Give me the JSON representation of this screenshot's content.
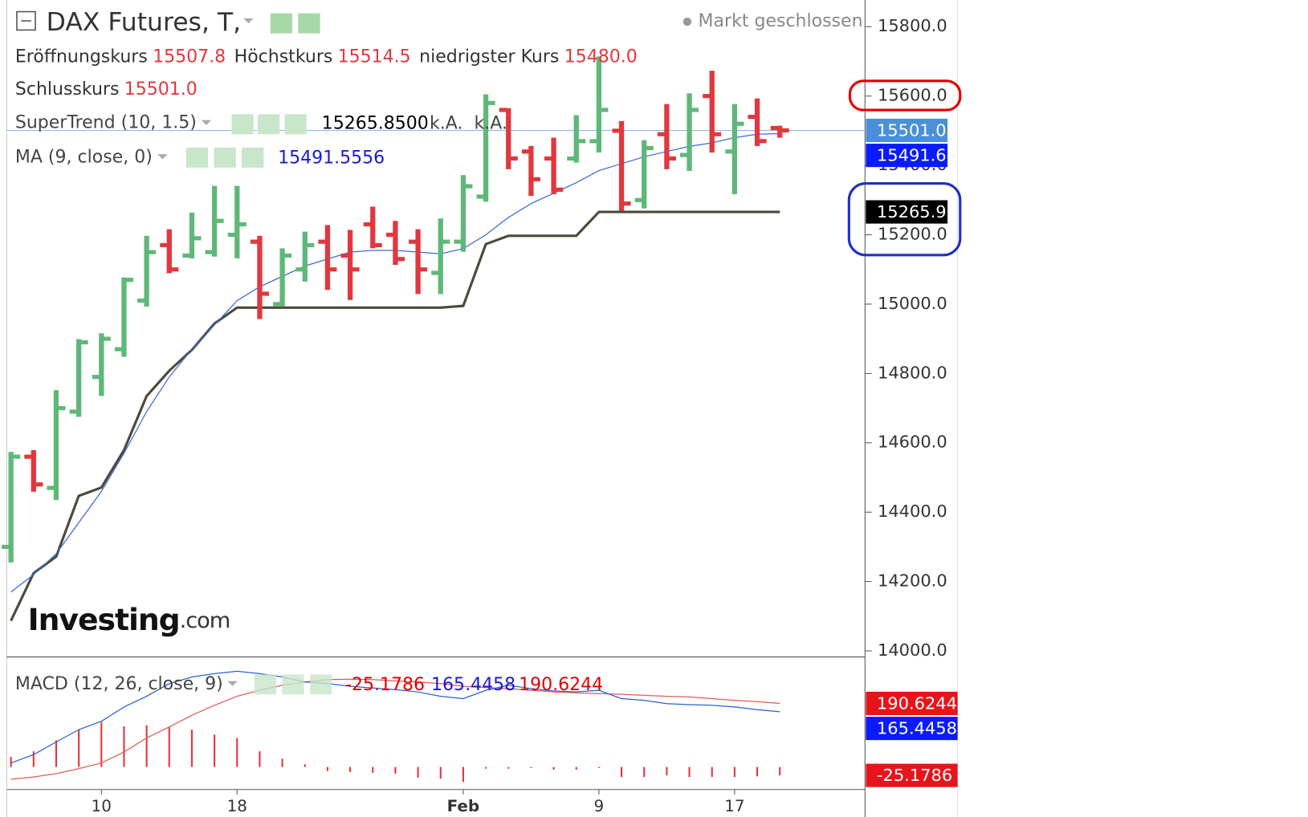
{
  "chart_data": {
    "type": "ohlc",
    "title": "DAX Futures, T,",
    "status": "Markt geschlossen",
    "watermark": [
      "Investing",
      ".com"
    ],
    "categories": [
      null,
      null,
      null,
      null,
      "10",
      null,
      null,
      null,
      null,
      null,
      "18",
      null,
      null,
      null,
      null,
      null,
      null,
      null,
      null,
      null,
      "Feb",
      null,
      null,
      null,
      null,
      null,
      "9",
      null,
      null,
      null,
      null,
      null,
      "17",
      null,
      null
    ],
    "open": [
      14300,
      14560,
      14470,
      14690,
      14790,
      14870,
      15010,
      15170,
      15140,
      15150,
      15200,
      15180,
      15000,
      15100,
      15180,
      15140,
      15230,
      15200,
      15180,
      15090,
      15180,
      15310,
      15560,
      15440,
      15420,
      15420,
      15470,
      15500,
      15300,
      15490,
      15430,
      15600,
      15440,
      15540,
      15507.8
    ],
    "high": [
      14574,
      14579,
      14752,
      14899,
      14916,
      15077,
      15197,
      15216,
      15264,
      15341,
      15341,
      15197,
      15161,
      15209,
      15228,
      15214,
      15281,
      15240,
      15216,
      15247,
      15372,
      15605,
      15565,
      15456,
      15480,
      15545,
      15714,
      15528,
      15473,
      15577,
      15608,
      15673,
      15577,
      15593,
      15514.5
    ],
    "low": [
      14255,
      14459,
      14435,
      14675,
      14735,
      14848,
      14993,
      15089,
      15132,
      15137,
      15132,
      14957,
      14993,
      15065,
      15041,
      15012,
      15161,
      15113,
      15029,
      15029,
      15151,
      15295,
      15389,
      15312,
      15317,
      15408,
      15437,
      15269,
      15276,
      15389,
      15384,
      15437,
      15317,
      15456,
      15480
    ],
    "close": [
      14560,
      14480,
      14700,
      14890,
      14900,
      15070,
      15150,
      15100,
      15190,
      15240,
      15230,
      15030,
      15140,
      15170,
      15100,
      15100,
      15170,
      15130,
      15100,
      15180,
      15340,
      15580,
      15420,
      15360,
      15330,
      15470,
      15560,
      15290,
      15450,
      15420,
      15560,
      15490,
      15520,
      15470,
      15501
    ],
    "up_color": "#5fb87a",
    "down_color": "#e0383e",
    "last_bar_legend": [
      {
        "name": "Eröffnungskurs",
        "label": "15507.8"
      },
      {
        "name": "Höchstkurs",
        "label": "15514.5"
      },
      {
        "name": "niedrigster Kurs",
        "label": "15480.0"
      },
      {
        "name": "Schlusskurs",
        "label": "15501.0"
      }
    ],
    "ylim": [
      13985,
      15877
    ],
    "yticks": [
      {
        "value": 14000,
        "label": "14000.0"
      },
      {
        "value": 14200,
        "label": "14200.0"
      },
      {
        "value": 14400,
        "label": "14400.0"
      },
      {
        "value": 14600,
        "label": "14600.0"
      },
      {
        "value": 14800,
        "label": "14800.0"
      },
      {
        "value": 15000,
        "label": "15000.0"
      },
      {
        "value": 15200,
        "label": "15200.0"
      },
      {
        "value": 15400,
        "label": "15400.0"
      },
      {
        "value": 15600,
        "label": "15600.0"
      },
      {
        "value": 15800,
        "label": "15800.0"
      }
    ],
    "current_price_line": 15501,
    "overlays": [
      {
        "name": "SuperTrend (10, 1.5)",
        "color": "#4a4a38",
        "value_label": "15265.8500",
        "extra_labels": [
          "k.A.",
          "k.A."
        ],
        "values": [
          14087,
          14224,
          14272,
          14447,
          14471,
          14579,
          14735,
          14808,
          14868,
          14944,
          14990,
          14990,
          14990,
          14990,
          14990,
          14990,
          14990,
          14990,
          14990,
          14990,
          14995,
          15173,
          15197,
          15197,
          15197,
          15197,
          15265.85,
          15265.85,
          15265.85,
          15265.85,
          15265.85,
          15265.85,
          15265.85,
          15265.85,
          15265.85
        ]
      },
      {
        "name": "MA (9, close, 0)",
        "color": "#3a6bd8",
        "label_color": "#1a1ad0",
        "values": [
          14170,
          14220,
          14280,
          14370,
          14460,
          14570,
          14690,
          14790,
          14870,
          14940,
          15010,
          15050,
          15080,
          15110,
          15130,
          15150,
          15155,
          15155,
          15150,
          15145,
          15160,
          15200,
          15250,
          15290,
          15320,
          15350,
          15385,
          15405,
          15425,
          15440,
          15455,
          15465,
          15480,
          15490,
          15491.5556
        ]
      }
    ],
    "price_labels": [
      {
        "value": 15501,
        "label": "15501.0",
        "color": "#4a90d9"
      },
      {
        "value": 15491.6,
        "label": "15491.6",
        "color": "#0b1bff"
      },
      {
        "value": 15265.9,
        "label": "15265.9",
        "color": "#000000"
      }
    ],
    "macd": {
      "title": "MACD (12, 26, close, 9)",
      "ylim": [
        -67.5,
        325
      ],
      "histogram": {
        "color": "#e0383e",
        "values": [
          30,
          47,
          80,
          112,
          135,
          122,
          125,
          120,
          112,
          97,
          87,
          47,
          25,
          8,
          -12,
          -15,
          -18,
          -20,
          -32,
          -35,
          -45,
          -5,
          -5,
          -3,
          -8,
          -8,
          -3,
          -30,
          -30,
          -25,
          -30,
          -30,
          -30,
          -28,
          -25.1786
        ]
      },
      "macd_line": {
        "color": "#2a5fd8",
        "values": [
          12,
          37,
          75,
          112,
          137,
          180,
          212,
          250,
          270,
          280,
          287,
          280,
          270,
          255,
          250,
          242,
          237,
          232,
          225,
          212,
          205,
          230,
          245,
          235,
          228,
          225,
          230,
          205,
          200,
          190,
          187,
          185,
          180,
          172,
          165.4458
        ]
      },
      "signal_line": {
        "color": "#e35a5a",
        "values": [
          -37,
          -30,
          -20,
          -5,
          12,
          45,
          87,
          120,
          155,
          185,
          212,
          230,
          245,
          255,
          262,
          263,
          262,
          258,
          255,
          250,
          242,
          238,
          235,
          230,
          225,
          222,
          220,
          218,
          215,
          212,
          210,
          205,
          200,
          196,
          190.6244
        ]
      }
    }
  }
}
